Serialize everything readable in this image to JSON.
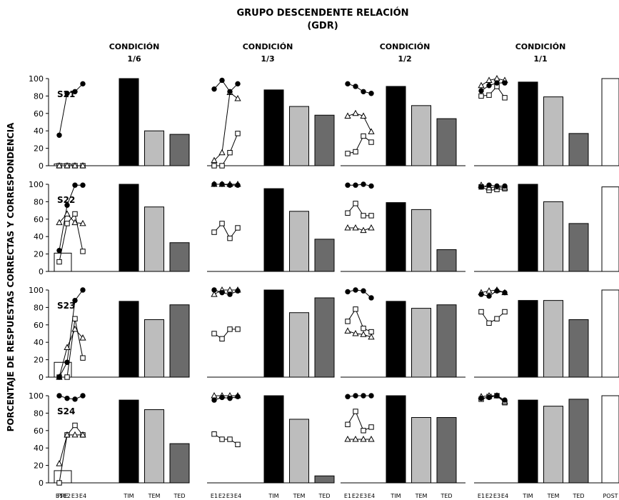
{
  "chart_data": {
    "type": "bar",
    "title": "GRUPO DESCENDENTE RELACIÓN",
    "subtitle": "(GDR)",
    "ylabel": "PORCENTAJE DE RESPUESTAS CORRECTAS Y CORRESPONDENCIA",
    "ylim": [
      0,
      100
    ],
    "yticks": [
      "0",
      "20",
      "40",
      "60",
      "80",
      "100"
    ],
    "grid": false,
    "conditions": [
      {
        "line1": "CONDICIÓN",
        "line2": "1/6"
      },
      {
        "line1": "CONDICIÓN",
        "line2": "1/3"
      },
      {
        "line1": "CONDICIÓN",
        "line2": "1/2"
      },
      {
        "line1": "CONDICIÓN",
        "line2": "1/1"
      }
    ],
    "session_labels": [
      "E1",
      "E2",
      "E3",
      "E4"
    ],
    "bar_labels": [
      "TIM",
      "TEM",
      "TED"
    ],
    "pre_label": "PRE",
    "post_label": "POST",
    "bar_colors": [
      "#000000",
      "#bdbdbd",
      "#6b6b6b"
    ],
    "subjects": [
      {
        "name": "S21",
        "pre": 2,
        "post": 100,
        "conditions": [
          {
            "circle": [
              35,
              83,
              85,
              94
            ],
            "triangle": [
              0,
              0,
              0,
              0
            ],
            "square": [
              0,
              0,
              0,
              0
            ],
            "bars": [
              100,
              40,
              36
            ]
          },
          {
            "circle": [
              88,
              98,
              85,
              94
            ],
            "triangle": [
              6,
              15,
              84,
              77
            ],
            "square": [
              0,
              0,
              15,
              37
            ],
            "bars": [
              87,
              68,
              58
            ]
          },
          {
            "circle": [
              94,
              91,
              85,
              83
            ],
            "triangle": [
              57,
              60,
              57,
              39
            ],
            "square": [
              14,
              16,
              34,
              27
            ],
            "bars": [
              91,
              69,
              54
            ]
          },
          {
            "circle": [
              86,
              92,
              95,
              95
            ],
            "triangle": [
              92,
              98,
              100,
              98
            ],
            "square": [
              80,
              81,
              91,
              78
            ],
            "bars": [
              96,
              79,
              37
            ]
          }
        ]
      },
      {
        "name": "S22",
        "pre": 21,
        "post": 97,
        "conditions": [
          {
            "circle": [
              24,
              76,
              99,
              99
            ],
            "triangle": [
              56,
              66,
              56,
              55
            ],
            "square": [
              11,
              55,
              66,
              23
            ],
            "bars": [
              100,
              74,
              33
            ]
          },
          {
            "circle": [
              100,
              100,
              99,
              99
            ],
            "triangle": [
              100,
              100,
              100,
              100
            ],
            "square": [
              45,
              55,
              38,
              50
            ],
            "bars": [
              95,
              69,
              37
            ]
          },
          {
            "circle": [
              99,
              99,
              100,
              98
            ],
            "triangle": [
              50,
              50,
              47,
              50
            ],
            "square": [
              67,
              78,
              64,
              64
            ],
            "bars": [
              79,
              71,
              25
            ]
          },
          {
            "circle": [
              97,
              99,
              98,
              98
            ],
            "triangle": [
              99,
              96,
              97,
              96
            ],
            "square": [
              97,
              93,
              94,
              95
            ],
            "bars": [
              100,
              80,
              55
            ]
          }
        ]
      },
      {
        "name": "S23",
        "pre": 17,
        "post": 100,
        "conditions": [
          {
            "circle": [
              0,
              17,
              88,
              100
            ],
            "triangle": [
              0,
              34,
              55,
              45
            ],
            "square": [
              0,
              0,
              67,
              22
            ],
            "bars": [
              87,
              66,
              83
            ]
          },
          {
            "circle": [
              100,
              97,
              95,
              99
            ],
            "triangle": [
              95,
              100,
              100,
              100
            ],
            "square": [
              50,
              44,
              55,
              55
            ],
            "bars": [
              100,
              74,
              91
            ]
          },
          {
            "circle": [
              98,
              100,
              99,
              91
            ],
            "triangle": [
              53,
              50,
              49,
              46
            ],
            "square": [
              64,
              78,
              56,
              52
            ],
            "bars": [
              87,
              79,
              83
            ]
          },
          {
            "circle": [
              95,
              93,
              99,
              97
            ],
            "triangle": [
              97,
              99,
              100,
              97
            ],
            "square": [
              75,
              62,
              67,
              75
            ],
            "bars": [
              88,
              88,
              66
            ]
          }
        ]
      },
      {
        "name": "S24",
        "pre": 14,
        "post": 100,
        "conditions": [
          {
            "circle": [
              100,
              97,
              96,
              100
            ],
            "triangle": [
              22,
              55,
              55,
              55
            ],
            "square": [
              0,
              55,
              66,
              55
            ],
            "bars": [
              95,
              84,
              45
            ]
          },
          {
            "circle": [
              95,
              98,
              97,
              99
            ],
            "triangle": [
              100,
              100,
              100,
              100
            ],
            "square": [
              56,
              50,
              50,
              44
            ],
            "bars": [
              100,
              73,
              8
            ]
          },
          {
            "circle": [
              99,
              100,
              100,
              100
            ],
            "triangle": [
              50,
              50,
              50,
              50
            ],
            "square": [
              67,
              82,
              60,
              64
            ],
            "bars": [
              100,
              75,
              75
            ]
          },
          {
            "circle": [
              97,
              98,
              100,
              95
            ],
            "triangle": [
              99,
              100,
              100,
              93
            ],
            "square": [
              96,
              99,
              100,
              92
            ],
            "bars": [
              95,
              88,
              96
            ]
          }
        ]
      }
    ]
  }
}
